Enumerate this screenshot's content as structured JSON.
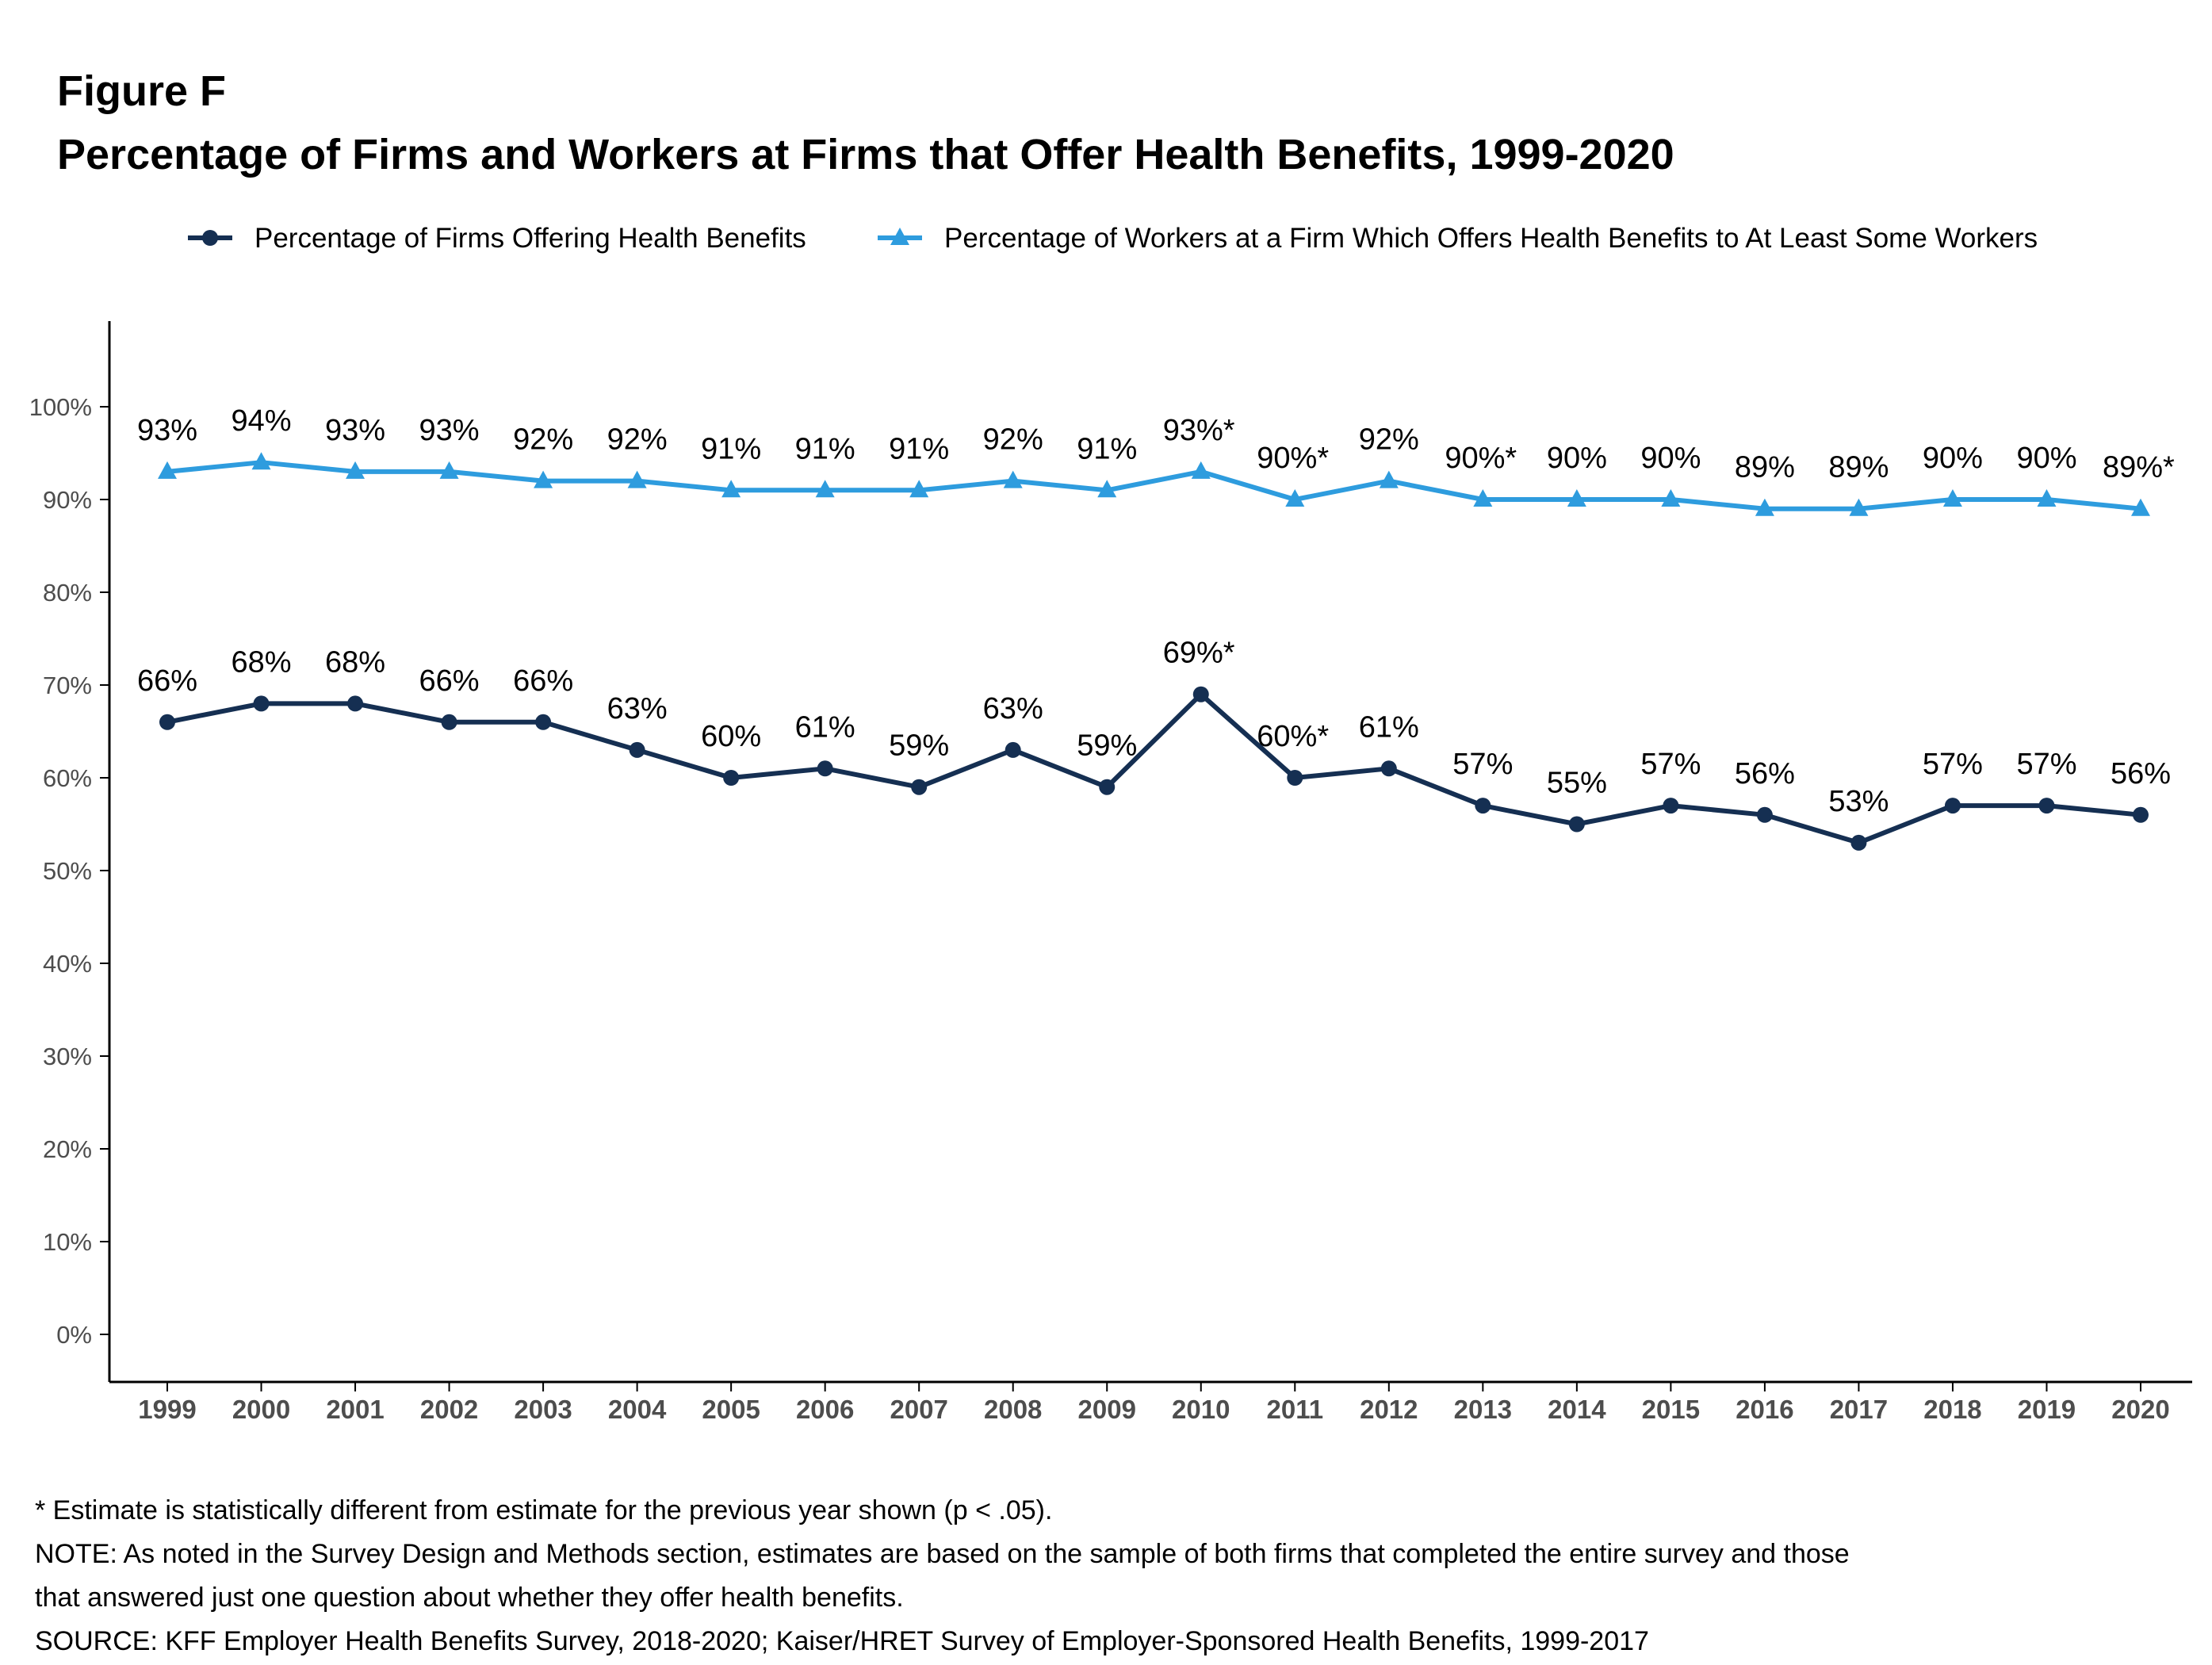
{
  "figure_label": "Figure F",
  "title": "Percentage of Firms and Workers at Firms that Offer Health Benefits, 1999-2020",
  "colors": {
    "firms": "#152F52",
    "workers": "#2E9CDE",
    "axis": "#000000",
    "tick_text": "#4D4D4D"
  },
  "chart_data": {
    "type": "line",
    "title": "Percentage of Firms and Workers at Firms that Offer Health Benefits, 1999-2020",
    "xlabel": "",
    "ylabel": "",
    "ylim": [
      -5,
      109
    ],
    "y_ticks": [
      0,
      10,
      20,
      30,
      40,
      50,
      60,
      70,
      80,
      90,
      100
    ],
    "y_tick_labels": [
      "0%",
      "10%",
      "20%",
      "30%",
      "40%",
      "50%",
      "60%",
      "70%",
      "80%",
      "90%",
      "100%"
    ],
    "legend_position": "top",
    "grid": false,
    "categories": [
      "1999",
      "2000",
      "2001",
      "2002",
      "2003",
      "2004",
      "2005",
      "2006",
      "2007",
      "2008",
      "2009",
      "2010",
      "2011",
      "2012",
      "2013",
      "2014",
      "2015",
      "2016",
      "2017",
      "2018",
      "2019",
      "2020"
    ],
    "series": [
      {
        "name": "Percentage of Firms Offering Health Benefits",
        "marker": "circle",
        "color": "#152F52",
        "values": [
          66,
          68,
          68,
          66,
          66,
          63,
          60,
          61,
          59,
          63,
          59,
          69,
          60,
          61,
          57,
          55,
          57,
          56,
          53,
          57,
          57,
          56
        ],
        "labels": [
          "66%",
          "68%",
          "68%",
          "66%",
          "66%",
          "63%",
          "60%",
          "61%",
          "59%",
          "63%",
          "59%",
          "69%*",
          "60%*",
          "61%",
          "57%",
          "55%",
          "57%",
          "56%",
          "53%",
          "57%",
          "57%",
          "56%"
        ]
      },
      {
        "name": "Percentage of Workers at a Firm Which Offers Health Benefits to At Least Some Workers",
        "marker": "triangle",
        "color": "#2E9CDE",
        "values": [
          93,
          94,
          93,
          93,
          92,
          92,
          91,
          91,
          91,
          92,
          91,
          93,
          90,
          92,
          90,
          90,
          90,
          89,
          89,
          90,
          90,
          89
        ],
        "labels": [
          "93%",
          "94%",
          "93%",
          "93%",
          "92%",
          "92%",
          "91%",
          "91%",
          "91%",
          "92%",
          "91%",
          "93%*",
          "90%*",
          "92%",
          "90%*",
          "90%",
          "90%",
          "89%",
          "89%",
          "90%",
          "90%",
          "89%*"
        ]
      }
    ]
  },
  "notes": {
    "line1": "* Estimate is statistically different from estimate for the previous year shown (p < .05).",
    "line2": "NOTE: As noted in the Survey Design and Methods section, estimates are based on the sample of both firms that completed the entire survey and those",
    "line3": "that answered just one question about whether they offer health benefits.",
    "line4": "SOURCE: KFF Employer Health Benefits Survey, 2018-2020; Kaiser/HRET Survey of Employer-Sponsored Health Benefits, 1999-2017"
  }
}
